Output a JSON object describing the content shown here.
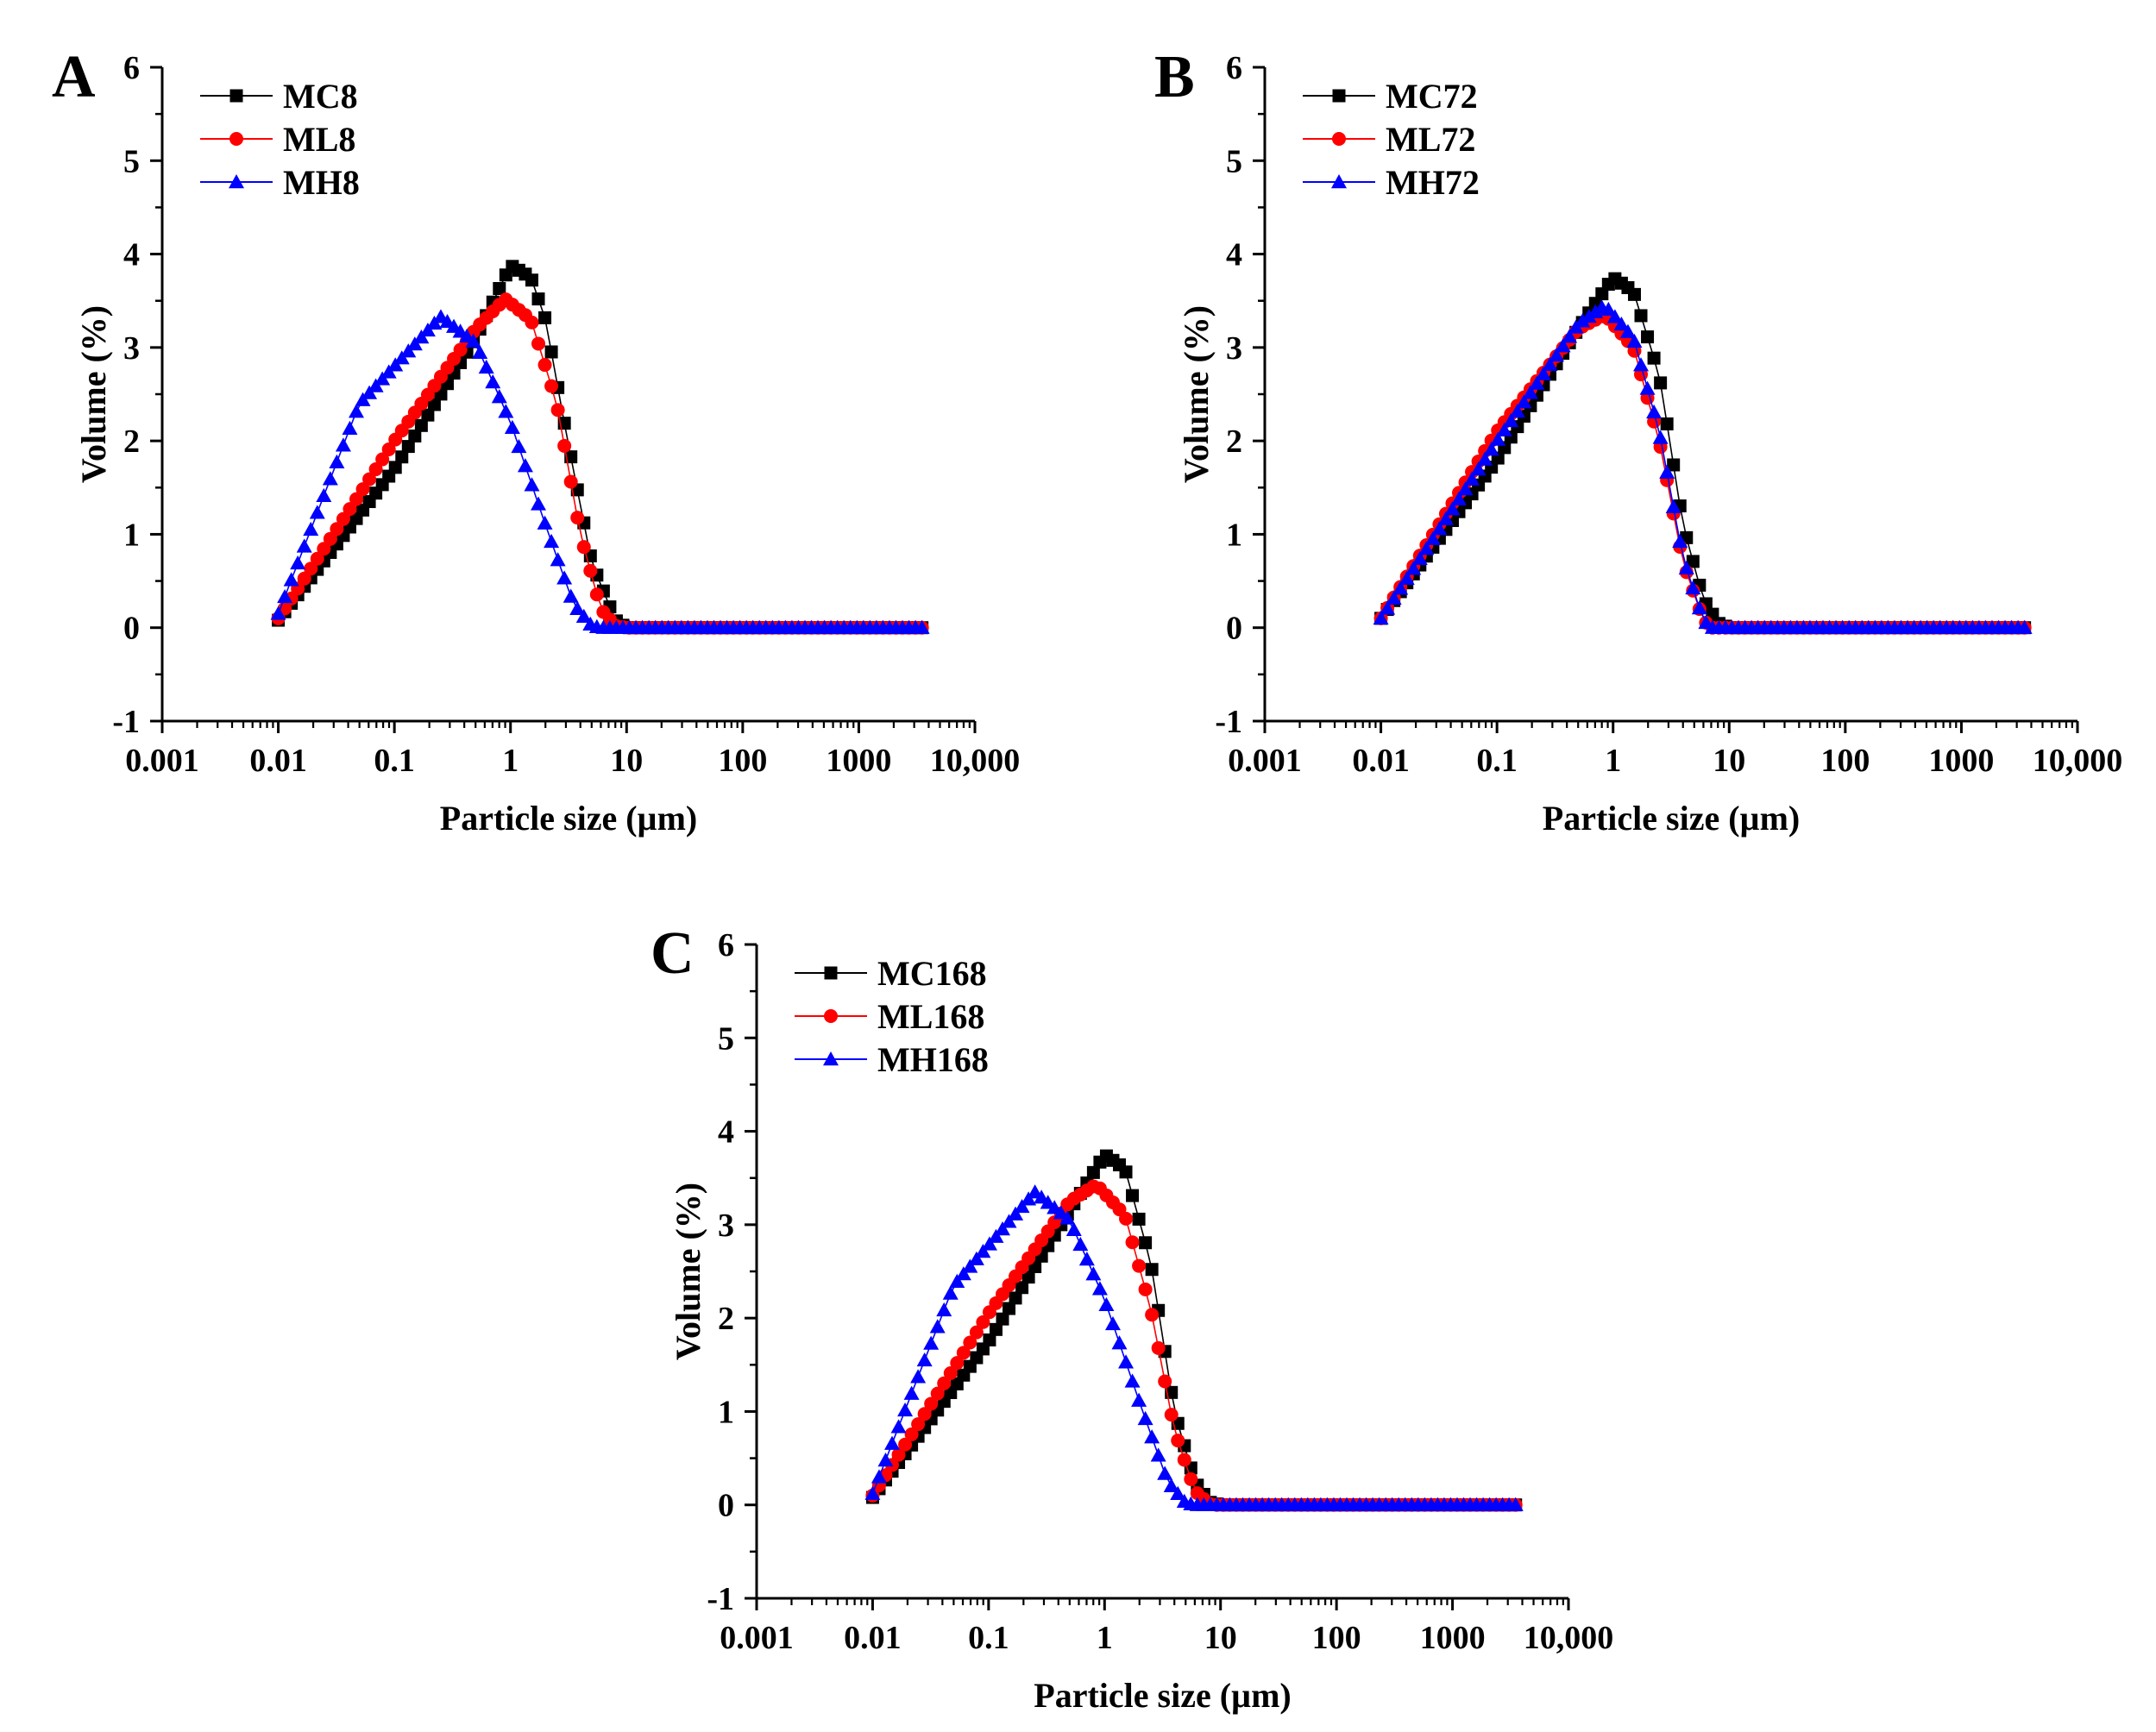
{
  "figure": {
    "panels": [
      "A",
      "B",
      "C"
    ]
  },
  "chart_data": [
    {
      "type": "scatter",
      "panel_label": "A",
      "xscale": "log",
      "xlabel": "Particle size (µm)",
      "ylabel": "Volume (%)",
      "xlim": [
        0.001,
        10000
      ],
      "ylim": [
        -1,
        6
      ],
      "xticks": [
        0.001,
        0.01,
        0.1,
        1,
        10,
        100,
        1000,
        10000
      ],
      "xtick_labels": [
        "0.001",
        "0.01",
        "0.1",
        "1",
        "10",
        "100",
        "1000",
        "10,000"
      ],
      "yticks": [
        -1,
        0,
        1,
        2,
        3,
        4,
        5,
        6
      ],
      "ytick_labels": [
        "-1",
        "0",
        "1",
        "2",
        "3",
        "4",
        "5",
        "6"
      ],
      "legend_position": "top-left",
      "x_range_points": [
        0.01,
        3500
      ],
      "series": [
        {
          "name": "MC8",
          "marker": "square",
          "color": "#000000",
          "points": [
            [
              0.01,
              0.08
            ],
            [
              0.1,
              1.7
            ],
            [
              0.5,
              3.1
            ],
            [
              1.0,
              3.88
            ],
            [
              1.5,
              3.75
            ],
            [
              2.0,
              3.3
            ],
            [
              3.0,
              2.1
            ],
            [
              5.0,
              0.7
            ],
            [
              8.0,
              0.08
            ],
            [
              10.0,
              0.0
            ],
            [
              3500,
              0.0
            ]
          ]
        },
        {
          "name": "ML8",
          "marker": "circle",
          "color": "#ff0000",
          "points": [
            [
              0.01,
              0.1
            ],
            [
              0.1,
              2.0
            ],
            [
              0.5,
              3.2
            ],
            [
              0.9,
              3.52
            ],
            [
              1.5,
              3.3
            ],
            [
              2.5,
              2.4
            ],
            [
              4.0,
              1.0
            ],
            [
              6.0,
              0.2
            ],
            [
              8.0,
              0.02
            ],
            [
              10.0,
              0.0
            ],
            [
              3500,
              0.0
            ]
          ]
        },
        {
          "name": "MH8",
          "marker": "triangle",
          "color": "#0000ff",
          "points": [
            [
              0.01,
              0.15
            ],
            [
              0.05,
              2.4
            ],
            [
              0.25,
              3.33
            ],
            [
              0.5,
              3.05
            ],
            [
              1.0,
              2.2
            ],
            [
              2.0,
              1.1
            ],
            [
              3.5,
              0.25
            ],
            [
              5.0,
              0.02
            ],
            [
              6.0,
              0.0
            ],
            [
              3500,
              0.0
            ]
          ]
        }
      ]
    },
    {
      "type": "scatter",
      "panel_label": "B",
      "xscale": "log",
      "xlabel": "Particle size (µm)",
      "ylabel": "Volume (%)",
      "xlim": [
        0.001,
        10000
      ],
      "ylim": [
        -1,
        6
      ],
      "xticks": [
        0.001,
        0.01,
        0.1,
        1,
        10,
        100,
        1000,
        10000
      ],
      "xtick_labels": [
        "0.001",
        "0.01",
        "0.1",
        "1",
        "10",
        "100",
        "1000",
        "10,000"
      ],
      "yticks": [
        -1,
        0,
        1,
        2,
        3,
        4,
        5,
        6
      ],
      "ytick_labels": [
        "-1",
        "0",
        "1",
        "2",
        "3",
        "4",
        "5",
        "6"
      ],
      "legend_position": "top-left",
      "x_range_points": [
        0.01,
        3500
      ],
      "series": [
        {
          "name": "MC72",
          "marker": "square",
          "color": "#000000",
          "points": [
            [
              0.01,
              0.1
            ],
            [
              0.1,
              1.8
            ],
            [
              0.5,
              3.2
            ],
            [
              1.0,
              3.75
            ],
            [
              1.5,
              3.6
            ],
            [
              2.5,
              2.7
            ],
            [
              4.0,
              1.1
            ],
            [
              6.0,
              0.3
            ],
            [
              8.0,
              0.05
            ],
            [
              10.0,
              0.0
            ],
            [
              3500,
              0.0
            ]
          ]
        },
        {
          "name": "ML72",
          "marker": "circle",
          "color": "#ff0000",
          "points": [
            [
              0.01,
              0.1
            ],
            [
              0.1,
              2.1
            ],
            [
              0.5,
              3.2
            ],
            [
              0.85,
              3.35
            ],
            [
              1.5,
              3.0
            ],
            [
              2.5,
              2.0
            ],
            [
              4.0,
              0.7
            ],
            [
              6.0,
              0.08
            ],
            [
              7.0,
              0.0
            ],
            [
              3500,
              0.0
            ]
          ]
        },
        {
          "name": "MH72",
          "marker": "triangle",
          "color": "#0000ff",
          "points": [
            [
              0.01,
              0.1
            ],
            [
              0.1,
              2.0
            ],
            [
              0.5,
              3.25
            ],
            [
              0.85,
              3.45
            ],
            [
              1.5,
              3.1
            ],
            [
              2.5,
              2.1
            ],
            [
              4.0,
              0.75
            ],
            [
              6.0,
              0.08
            ],
            [
              7.0,
              0.0
            ],
            [
              3500,
              0.0
            ]
          ]
        }
      ]
    },
    {
      "type": "scatter",
      "panel_label": "C",
      "xscale": "log",
      "xlabel": "Particle size (µm)",
      "ylabel": "Volume (%)",
      "xlim": [
        0.001,
        10000
      ],
      "ylim": [
        -1,
        6
      ],
      "xticks": [
        0.001,
        0.01,
        0.1,
        1,
        10,
        100,
        1000,
        10000
      ],
      "xtick_labels": [
        "0.001",
        "0.01",
        "0.1",
        "1",
        "10",
        "100",
        "1000",
        "10,000"
      ],
      "yticks": [
        -1,
        0,
        1,
        2,
        3,
        4,
        5,
        6
      ],
      "ytick_labels": [
        "-1",
        "0",
        "1",
        "2",
        "3",
        "4",
        "5",
        "6"
      ],
      "legend_position": "top-left",
      "x_range_points": [
        0.01,
        3500
      ],
      "series": [
        {
          "name": "MC168",
          "marker": "square",
          "color": "#000000",
          "points": [
            [
              0.01,
              0.08
            ],
            [
              0.1,
              1.75
            ],
            [
              0.5,
              3.15
            ],
            [
              1.0,
              3.75
            ],
            [
              1.5,
              3.6
            ],
            [
              2.5,
              2.6
            ],
            [
              4.0,
              1.0
            ],
            [
              6.0,
              0.25
            ],
            [
              8.0,
              0.03
            ],
            [
              10.0,
              0.0
            ],
            [
              3500,
              0.0
            ]
          ]
        },
        {
          "name": "ML168",
          "marker": "circle",
          "color": "#ff0000",
          "points": [
            [
              0.01,
              0.1
            ],
            [
              0.1,
              2.05
            ],
            [
              0.5,
              3.25
            ],
            [
              0.85,
              3.43
            ],
            [
              1.5,
              3.1
            ],
            [
              2.5,
              2.1
            ],
            [
              4.0,
              0.8
            ],
            [
              6.0,
              0.15
            ],
            [
              8.0,
              0.01
            ],
            [
              9.0,
              0.0
            ],
            [
              3500,
              0.0
            ]
          ]
        },
        {
          "name": "MH168",
          "marker": "triangle",
          "color": "#0000ff",
          "points": [
            [
              0.01,
              0.12
            ],
            [
              0.05,
              2.35
            ],
            [
              0.25,
              3.35
            ],
            [
              0.5,
              3.05
            ],
            [
              1.0,
              2.2
            ],
            [
              2.0,
              1.1
            ],
            [
              3.5,
              0.25
            ],
            [
              5.0,
              0.02
            ],
            [
              6.0,
              0.0
            ],
            [
              3500,
              0.0
            ]
          ]
        }
      ]
    }
  ]
}
